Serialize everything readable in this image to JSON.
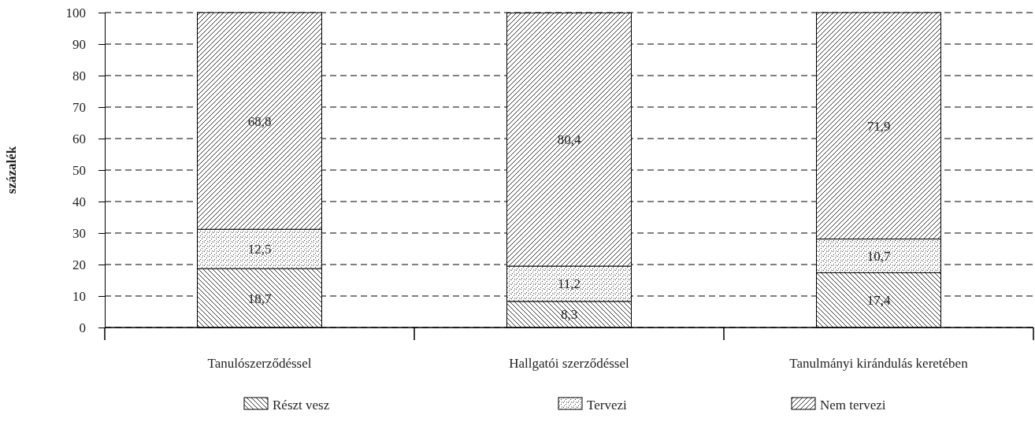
{
  "chart_data": {
    "type": "bar",
    "stacked": true,
    "ylabel": "százalék",
    "categories": [
      "Tanulószerződéssel",
      "Hallgatói szerződéssel",
      "Tanulmányi kirándulás keretében"
    ],
    "series": [
      {
        "name": "Részt vesz",
        "color": "#000000",
        "values": [
          18.7,
          8.3,
          17.4
        ],
        "value_labels": [
          "18,7",
          "8,3",
          "17,4"
        ]
      },
      {
        "name": "Tervezi",
        "color": "#000000",
        "values": [
          12.5,
          11.2,
          10.7
        ],
        "value_labels": [
          "12,5",
          "11,2",
          "10,7"
        ]
      },
      {
        "name": "Nem tervezi",
        "color": "#000000",
        "values": [
          68.8,
          80.4,
          71.9
        ],
        "value_labels": [
          "68,8",
          "80,4",
          "71,9"
        ]
      }
    ],
    "ylim": [
      0,
      100
    ],
    "yticks": [
      0,
      10,
      20,
      30,
      40,
      50,
      60,
      70,
      80,
      90,
      100
    ],
    "grid": "y",
    "legend": "bottom"
  }
}
